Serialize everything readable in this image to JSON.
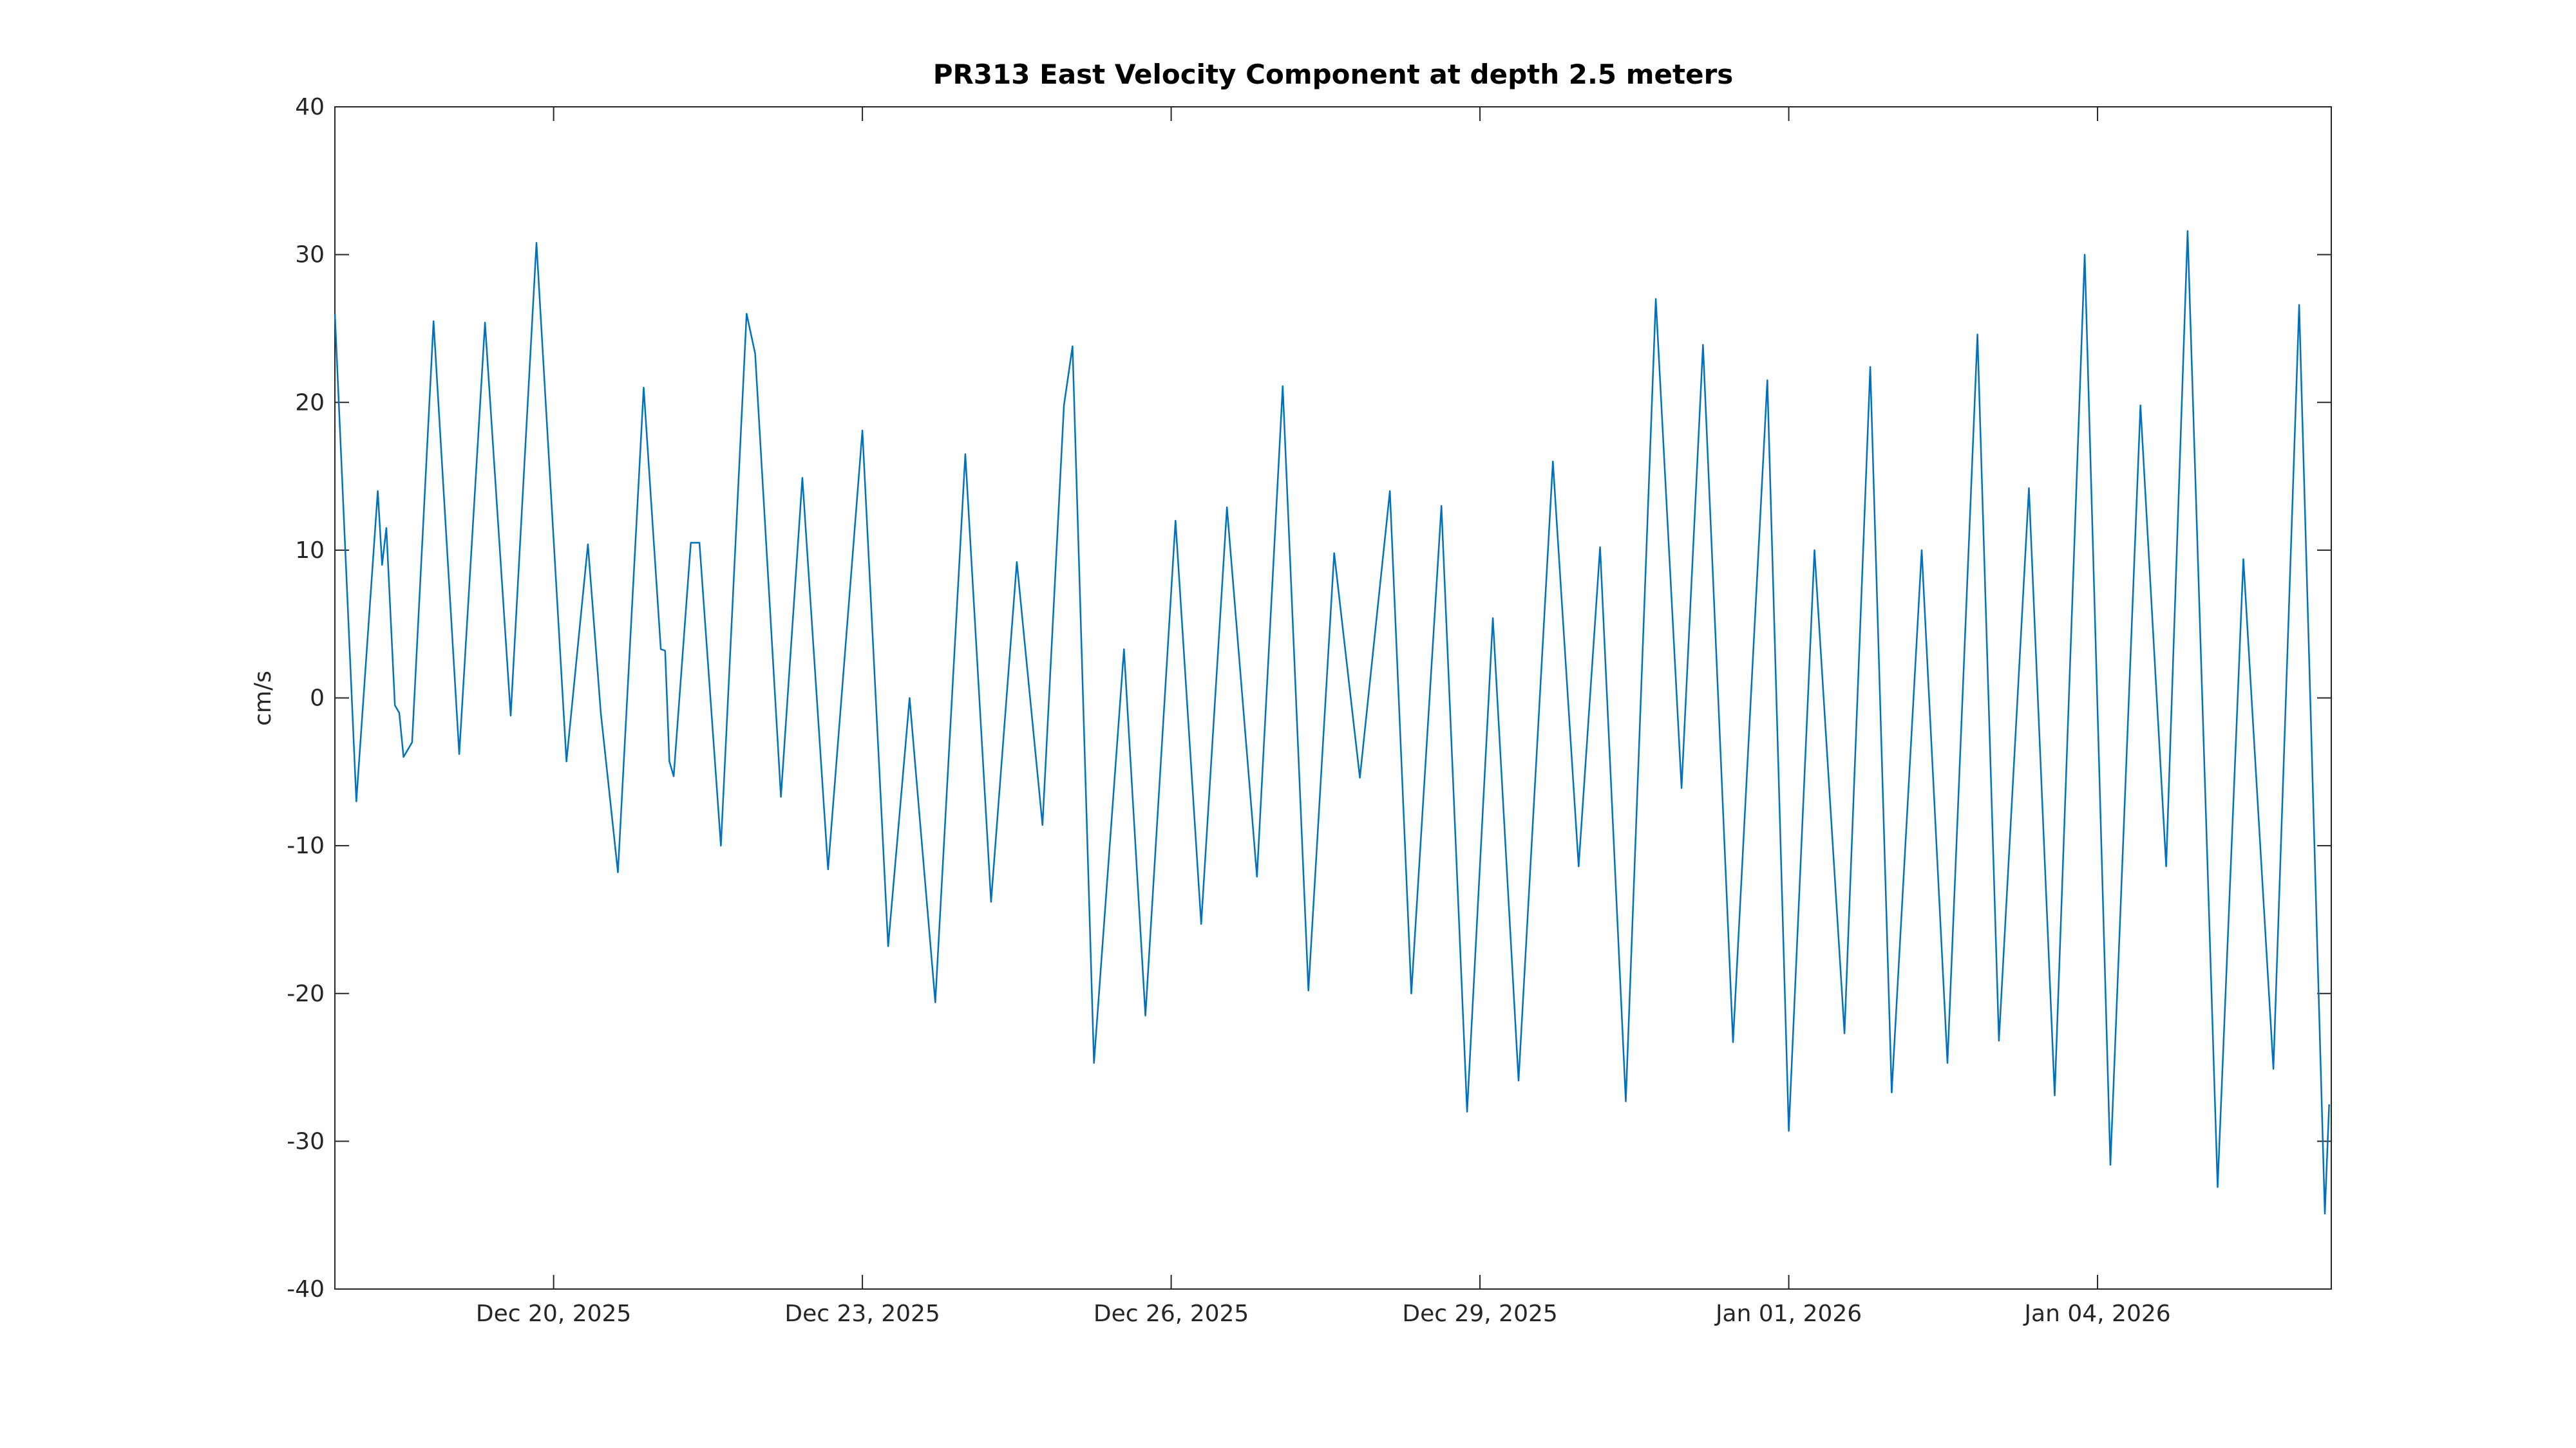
{
  "chart_data": {
    "type": "line",
    "title": "PR313 East Velocity Component at depth 2.5 meters",
    "y_label": "cm/s",
    "x": [
      "2025-12-17T21:00",
      "2025-12-18T02:00",
      "2025-12-18T07:00",
      "2025-12-18T08:00",
      "2025-12-18T09:00",
      "2025-12-18T11:00",
      "2025-12-18T12:00",
      "2025-12-18T13:00",
      "2025-12-18T15:00",
      "2025-12-18T20:00",
      "2025-12-19T02:00",
      "2025-12-19T08:00",
      "2025-12-19T14:00",
      "2025-12-19T20:00",
      "2025-12-20T03:00",
      "2025-12-20T08:00",
      "2025-12-20T11:00",
      "2025-12-20T15:00",
      "2025-12-20T21:00",
      "2025-12-21T01:00",
      "2025-12-21T02:00",
      "2025-12-21T03:00",
      "2025-12-21T04:00",
      "2025-12-21T08:00",
      "2025-12-21T10:00",
      "2025-12-21T15:00",
      "2025-12-21T21:00",
      "2025-12-21T23:00",
      "2025-12-22T05:00",
      "2025-12-22T10:00",
      "2025-12-22T16:00",
      "2025-12-23T00:00",
      "2025-12-23T06:00",
      "2025-12-23T11:00",
      "2025-12-23T17:00",
      "2025-12-24T00:00",
      "2025-12-24T06:00",
      "2025-12-24T12:00",
      "2025-12-24T18:00",
      "2025-12-24T23:00",
      "2025-12-25T01:00",
      "2025-12-25T06:00",
      "2025-12-25T13:00",
      "2025-12-25T18:00",
      "2025-12-26T01:00",
      "2025-12-26T07:00",
      "2025-12-26T13:00",
      "2025-12-26T20:00",
      "2025-12-27T02:00",
      "2025-12-27T08:00",
      "2025-12-27T14:00",
      "2025-12-27T20:00",
      "2025-12-28T03:00",
      "2025-12-28T08:00",
      "2025-12-28T15:00",
      "2025-12-28T21:00",
      "2025-12-29T03:00",
      "2025-12-29T09:00",
      "2025-12-29T17:00",
      "2025-12-29T23:00",
      "2025-12-30T04:00",
      "2025-12-30T10:00",
      "2025-12-30T17:00",
      "2025-12-30T23:00",
      "2025-12-31T04:00",
      "2025-12-31T11:00",
      "2025-12-31T19:00",
      "2026-01-01T00:00",
      "2026-01-01T06:00",
      "2026-01-01T13:00",
      "2026-01-01T19:00",
      "2026-01-02T00:00",
      "2026-01-02T07:00",
      "2026-01-02T13:00",
      "2026-01-02T20:00",
      "2026-01-03T01:00",
      "2026-01-03T08:00",
      "2026-01-03T14:00",
      "2026-01-03T21:00",
      "2026-01-04T03:00",
      "2026-01-04T10:00",
      "2026-01-04T16:00",
      "2026-01-04T21:00",
      "2026-01-05T04:00",
      "2026-01-05T10:00",
      "2026-01-05T17:00",
      "2026-01-05T23:00",
      "2026-01-06T05:00",
      "2026-01-06T06:00"
    ],
    "series": [
      {
        "name": "East Velocity",
        "color": "#0072bd",
        "values": [
          26,
          -7,
          14,
          9,
          11.5,
          -0.5,
          -1,
          -4,
          -3,
          25.5,
          -3.8,
          25.4,
          -1.2,
          30.8,
          -4.3,
          10.4,
          -1,
          -11.8,
          21,
          3.3,
          3.2,
          -4.3,
          -5.3,
          10.5,
          10.5,
          -10,
          26,
          23.3,
          -6.7,
          14.9,
          -11.6,
          18.1,
          -16.8,
          0,
          -20.6,
          16.5,
          -13.8,
          9.2,
          -8.6,
          19.8,
          23.8,
          -24.7,
          3.3,
          -21.5,
          12,
          -15.3,
          12.9,
          -12.1,
          21.1,
          -19.8,
          9.8,
          -5.4,
          14,
          -20,
          13,
          -28,
          5.4,
          -25.9,
          16,
          -11.4,
          10.2,
          -27.3,
          27,
          -6.1,
          23.9,
          -23.3,
          21.5,
          -29.3,
          10,
          -22.7,
          22.4,
          -26.7,
          10,
          -24.7,
          24.6,
          -23.2,
          14.2,
          -26.9,
          30,
          -31.6,
          19.8,
          -11.4,
          31.6,
          -33.1,
          9.4,
          -25.1,
          26.6,
          -34.9,
          -27.5
        ]
      }
    ],
    "xlim": [
      "2025-12-17T21:00",
      "2026-01-06T06:30"
    ],
    "xticks": [
      {
        "value": "2025-12-20T00:00",
        "label": "Dec 20, 2025"
      },
      {
        "value": "2025-12-23T00:00",
        "label": "Dec 23, 2025"
      },
      {
        "value": "2025-12-26T00:00",
        "label": "Dec 26, 2025"
      },
      {
        "value": "2025-12-29T00:00",
        "label": "Dec 29, 2025"
      },
      {
        "value": "2026-01-01T00:00",
        "label": "Jan 01, 2026"
      },
      {
        "value": "2026-01-04T00:00",
        "label": "Jan 04, 2026"
      }
    ],
    "ylim": [
      -40,
      40
    ],
    "yticks": [
      -40,
      -30,
      -20,
      -10,
      0,
      10,
      20,
      30,
      40
    ],
    "grid": false
  }
}
